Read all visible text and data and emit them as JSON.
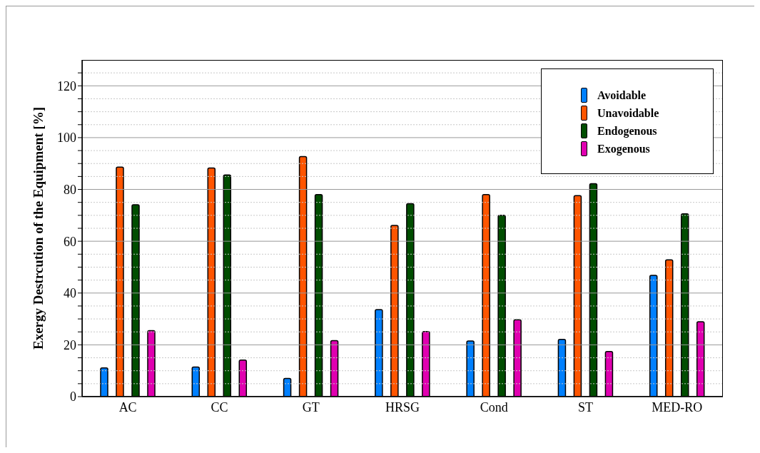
{
  "chart_data": {
    "type": "bar",
    "ylabel": "Exergy Destrcution of the Equipment [%]",
    "categories": [
      "AC",
      "CC",
      "GT",
      "HRSG",
      "Cond",
      "ST",
      "MED-RO"
    ],
    "series": [
      {
        "name": "Avoidable",
        "color": "#0080ff",
        "values": [
          11.1,
          11.4,
          7.0,
          33.6,
          21.5,
          22.1,
          46.8
        ]
      },
      {
        "name": "Unavoidable",
        "color": "#ff5500",
        "values": [
          88.6,
          88.3,
          92.7,
          66.1,
          78.0,
          77.6,
          52.8
        ]
      },
      {
        "name": "Endogenous",
        "color": "#004d00",
        "values": [
          74.1,
          85.6,
          78.0,
          74.5,
          70.0,
          82.2,
          70.6
        ]
      },
      {
        "name": "Exogenous",
        "color": "#e000b0",
        "values": [
          25.5,
          14.1,
          21.6,
          25.1,
          29.7,
          17.4,
          28.9
        ]
      }
    ],
    "ylim": [
      0,
      130
    ],
    "yticks": [
      0,
      {
        "value": 5,
        "label": null
      },
      {
        "value": 10,
        "label": null
      },
      {
        "value": 15,
        "label": null
      },
      20,
      {
        "value": 25,
        "label": null
      },
      {
        "value": 30,
        "label": null
      },
      {
        "value": 35,
        "label": null
      },
      40,
      {
        "value": 45,
        "label": null
      },
      {
        "value": 50,
        "label": null
      },
      {
        "value": 55,
        "label": null
      },
      60,
      {
        "value": 65,
        "label": null
      },
      {
        "value": 70,
        "label": null
      },
      {
        "value": 75,
        "label": null
      },
      80,
      {
        "value": 85,
        "label": null
      },
      {
        "value": 90,
        "label": null
      },
      {
        "value": 95,
        "label": null
      },
      100,
      {
        "value": 105,
        "label": null
      },
      {
        "value": 110,
        "label": null
      },
      {
        "value": 115,
        "label": null
      },
      120,
      {
        "value": 125,
        "label": null
      }
    ],
    "grid": true,
    "legend": "top right"
  }
}
